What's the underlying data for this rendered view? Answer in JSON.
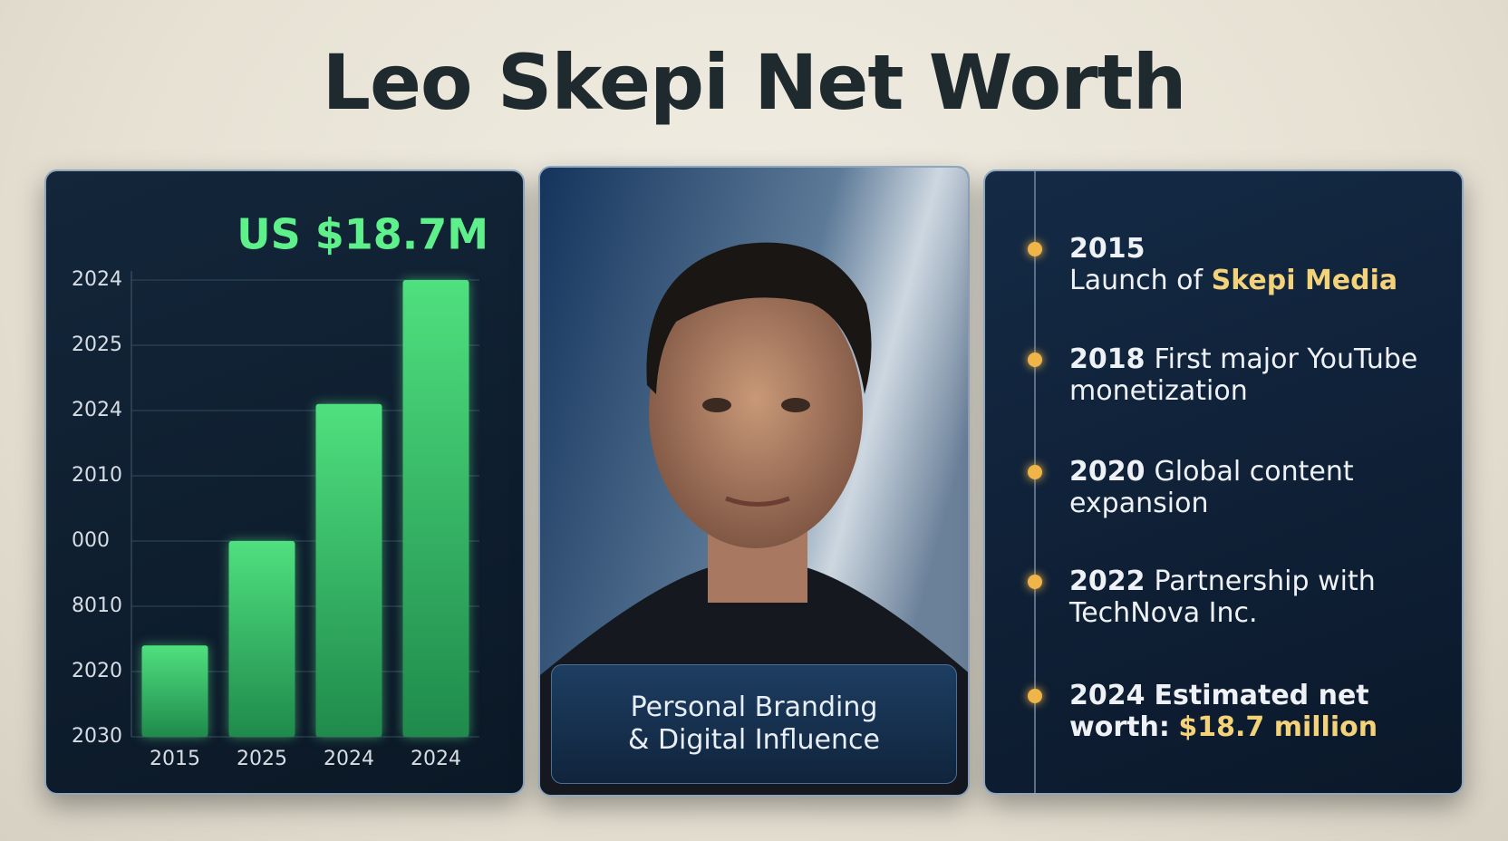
{
  "title": "Leo Skepi Net Worth",
  "chart_data": {
    "type": "bar",
    "headline": "US $18.7M",
    "categories": [
      "2015",
      "2025",
      "2024",
      "2024"
    ],
    "values": [
      1.4,
      3.0,
      5.1,
      7.0
    ],
    "color": "#4fe07f",
    "ylim": [
      0,
      7
    ],
    "yticks": [
      {
        "value": 0,
        "label": "2030"
      },
      {
        "value": 1,
        "label": "2020"
      },
      {
        "value": 2,
        "label": "8010"
      },
      {
        "value": 3,
        "label": "000"
      },
      {
        "value": 4,
        "label": "2010"
      },
      {
        "value": 5,
        "label": "2024"
      },
      {
        "value": 6,
        "label": "2025"
      },
      {
        "value": 7,
        "label": "2024"
      }
    ],
    "grid": true
  },
  "photo_panel": {
    "caption": [
      "Personal Branding",
      "& Digital Influence"
    ]
  },
  "timeline": {
    "items": [
      {
        "year": "2015",
        "text": "Launch of",
        "highlight": "Skepi Media"
      },
      {
        "year": "2018",
        "text": "First major YouTube monetization"
      },
      {
        "year": "2020",
        "text": "Global content expansion"
      },
      {
        "year": "2022",
        "text": "Partnership with TechNova Inc."
      },
      {
        "year": "2024",
        "text": "Estimated net worth:",
        "highlight": "$18.7 million"
      }
    ]
  }
}
